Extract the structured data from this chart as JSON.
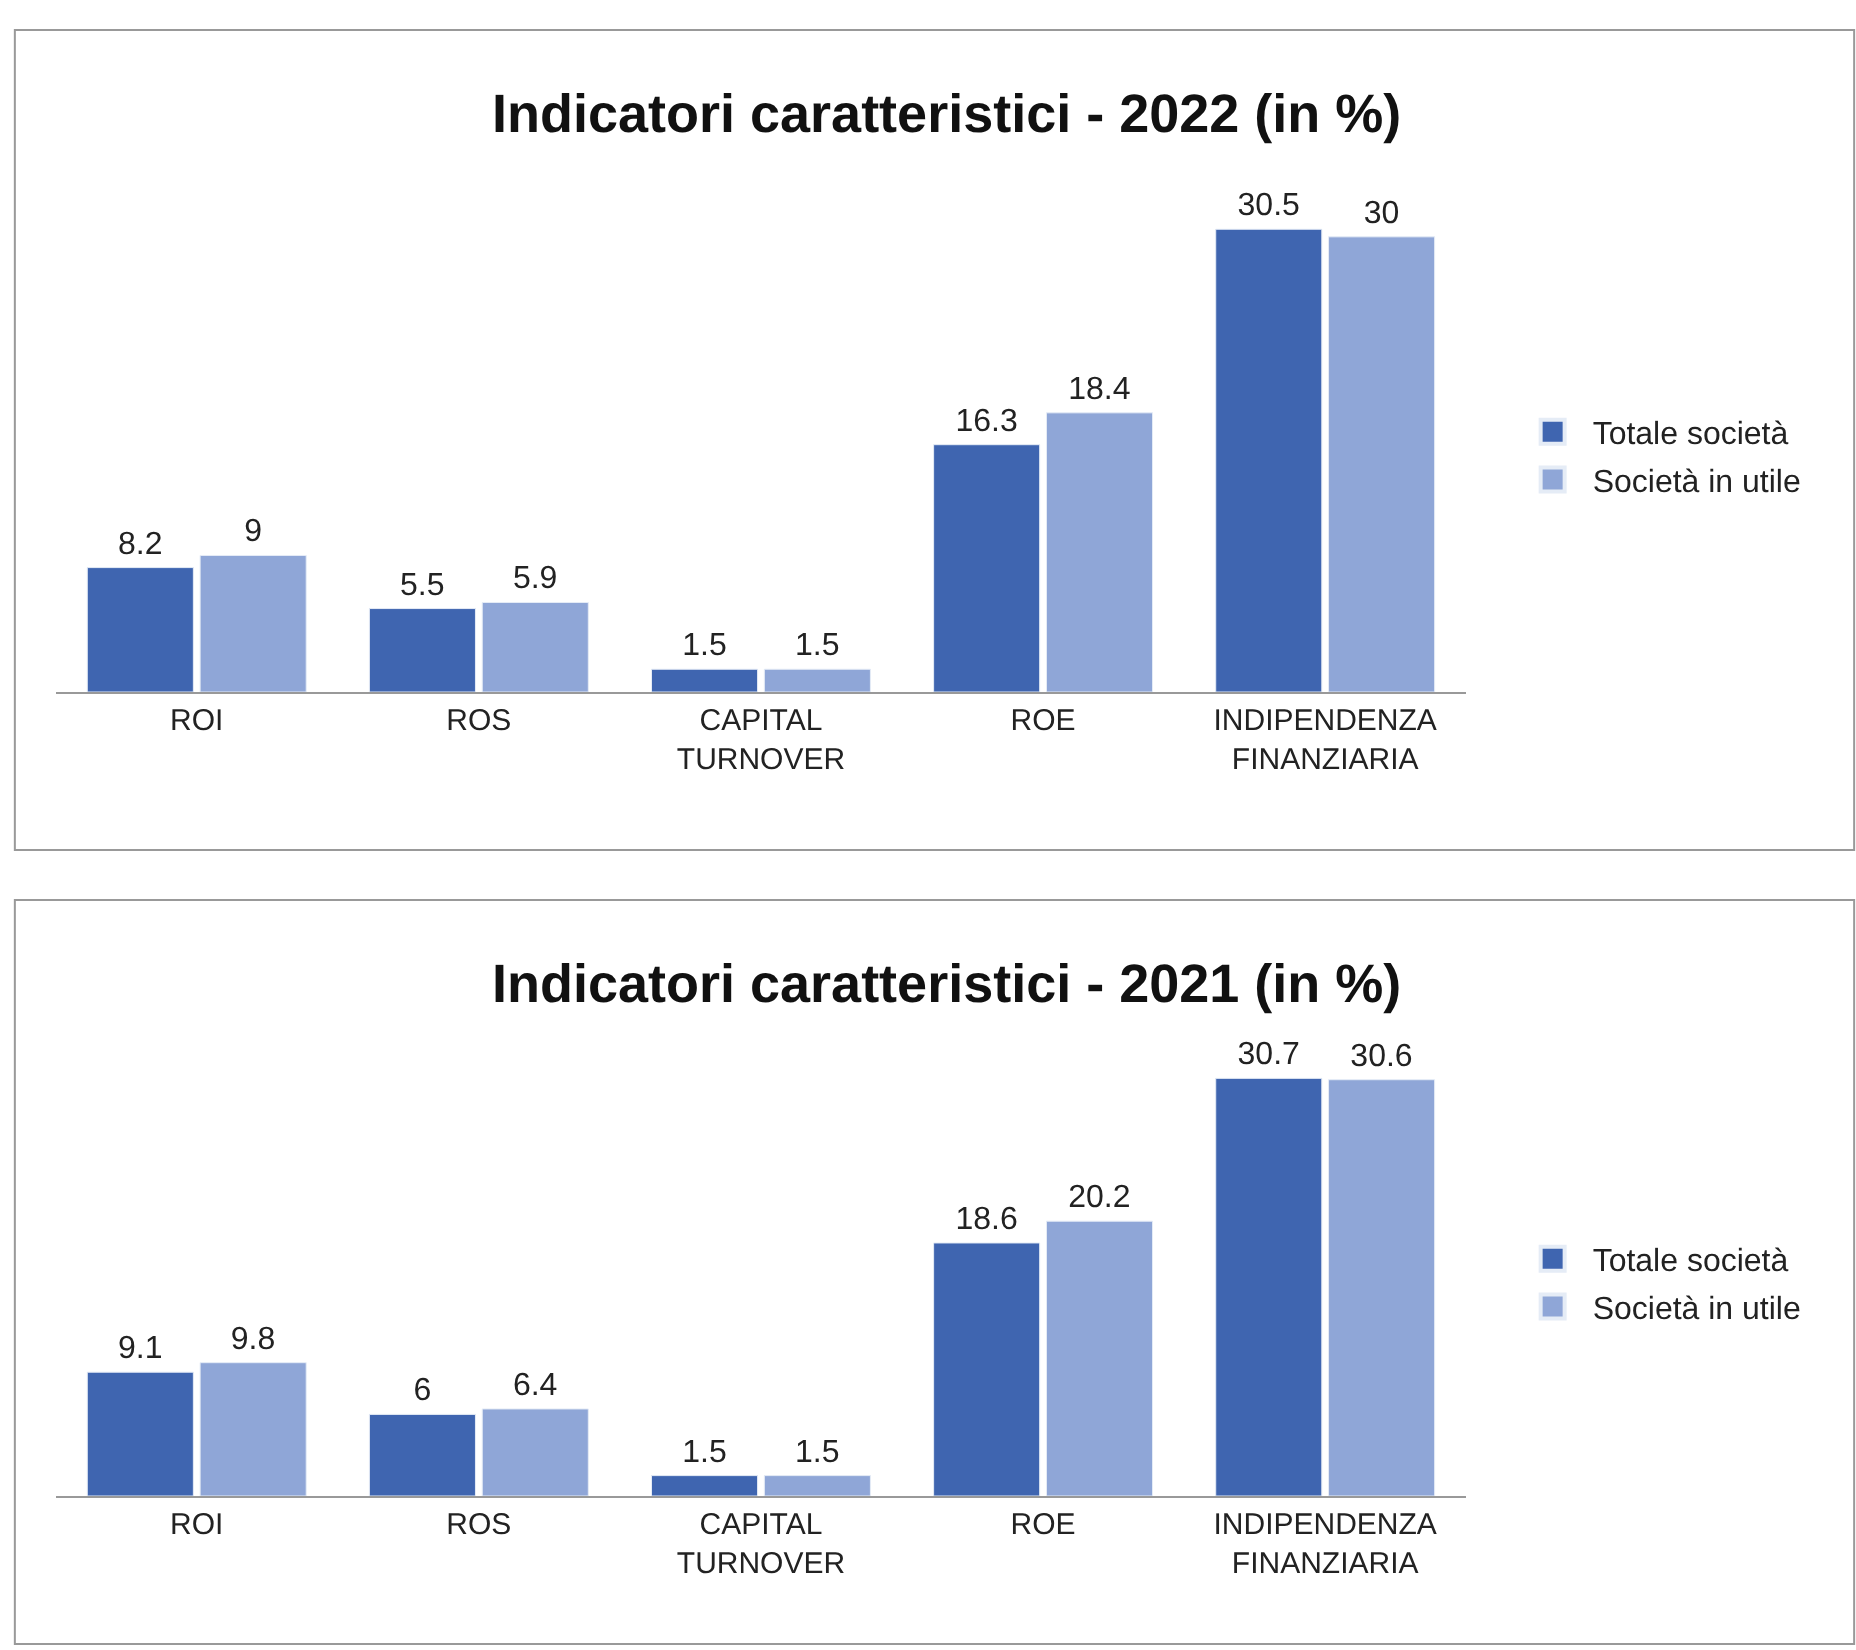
{
  "chart_data": [
    {
      "type": "bar",
      "title": "Indicatori caratteristici - 2022 (in %)",
      "categories": [
        "ROI",
        "ROS",
        "CAPITAL TURNOVER",
        "ROE",
        "INDIPENDENZA FINANZIARIA"
      ],
      "series": [
        {
          "name": "Totale società",
          "color": "#3f65b0",
          "values": [
            8.2,
            5.5,
            1.5,
            16.3,
            30.5
          ]
        },
        {
          "name": "Società in utile",
          "color": "#8fa6d7",
          "values": [
            9,
            5.9,
            1.5,
            18.4,
            30
          ]
        }
      ],
      "data_labels": true,
      "legend": "right"
    },
    {
      "type": "bar",
      "title": "Indicatori caratteristici - 2021 (in %)",
      "categories": [
        "ROI",
        "ROS",
        "CAPITAL TURNOVER",
        "ROE",
        "INDIPENDENZA FINANZIARIA"
      ],
      "series": [
        {
          "name": "Totale società",
          "color": "#3f65b0",
          "values": [
            9.1,
            6,
            1.5,
            18.6,
            30.7
          ]
        },
        {
          "name": "Società in utile",
          "color": "#8fa6d7",
          "values": [
            9.8,
            6.4,
            1.5,
            20.2,
            30.6
          ]
        }
      ],
      "data_labels": true,
      "legend": "right"
    }
  ]
}
